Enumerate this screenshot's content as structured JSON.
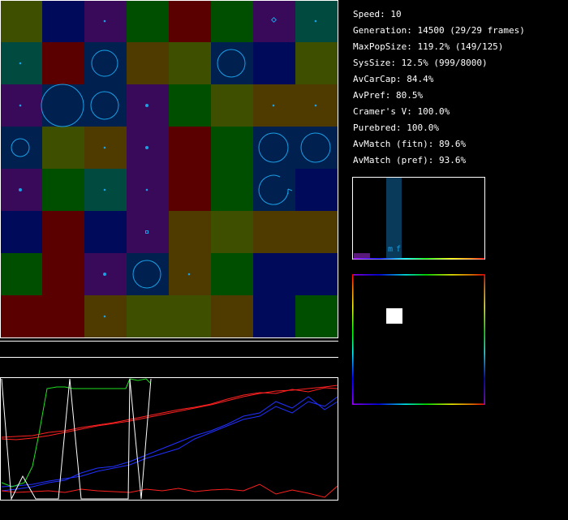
{
  "stats": {
    "speed": "Speed: 10",
    "generation": "Generation: 14500 (29/29 frames)",
    "max_pop_size": "MaxPopSize: 119.2% (149/125)",
    "sys_size": "SysSize: 12.5% (999/8000)",
    "av_car_cap": "AvCarCap: 84.4%",
    "av_pref": "AvPref: 80.5%",
    "cramers_v": "Cramer's V: 100.0%",
    "purebred": "Purebred: 100.0%",
    "av_match_fitn": "AvMatch (fitn): 89.6%",
    "av_match_pref": "AvMatch (pref): 93.6%"
  },
  "histogram": {
    "label_m": "m",
    "label_f": "f",
    "peak_fraction": 1.0,
    "small_bar_fraction": 0.06
  },
  "colors": {
    "olive": "#3f4f00",
    "navy": "#000a5a",
    "purple": "#3a0a5a",
    "green": "#004f00",
    "maroon": "#5a0000",
    "teal": "#004a3f",
    "blue": "#002050",
    "brown": "#4f3a00",
    "accent": "#1aa0e6",
    "red": "#ff2020",
    "lime": "#20e020",
    "white": "#ffffff",
    "bluepl": "#2030ff"
  },
  "world_grid": [
    [
      "olive",
      "navy",
      "purple",
      "green",
      "maroon",
      "green",
      "purple",
      "teal"
    ],
    [
      "teal",
      "maroon",
      "blue",
      "brown",
      "olive",
      "blue",
      "navy",
      "olive"
    ],
    [
      "purple",
      "blue",
      "blue",
      "purple",
      "green",
      "olive",
      "brown",
      "brown"
    ],
    [
      "blue",
      "olive",
      "brown",
      "purple",
      "maroon",
      "green",
      "blue",
      "blue"
    ],
    [
      "purple",
      "green",
      "teal",
      "purple",
      "maroon",
      "green",
      "blue",
      "navy"
    ],
    [
      "navy",
      "maroon",
      "navy",
      "purple",
      "brown",
      "olive",
      "brown",
      "brown"
    ],
    [
      "green",
      "maroon",
      "purple",
      "blue",
      "brown",
      "green",
      "navy",
      "navy"
    ],
    [
      "maroon",
      "maroon",
      "brown",
      "olive",
      "olive",
      "brown",
      "navy",
      "green"
    ]
  ]
}
